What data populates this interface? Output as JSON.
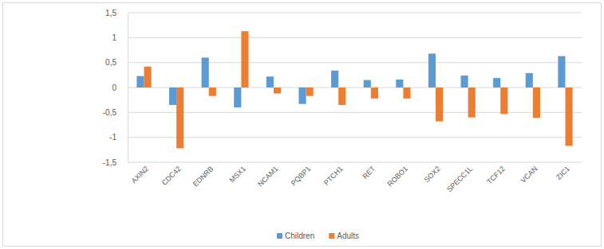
{
  "chart_data": {
    "type": "bar",
    "categories": [
      "AXIN2",
      "CDC42",
      "EDNRB",
      "MSX1",
      "NCAM1",
      "PQBP1",
      "PTCH1",
      "RET",
      "ROBO1",
      "SOX2",
      "SPECC1L",
      "TCF12",
      "VCAN",
      "ZIC1"
    ],
    "series": [
      {
        "name": "Children",
        "color": "#5b9bd5",
        "values": [
          0.23,
          -0.35,
          0.6,
          -0.4,
          0.22,
          -0.33,
          0.34,
          0.15,
          0.16,
          0.68,
          0.24,
          0.19,
          0.29,
          0.63
        ]
      },
      {
        "name": "Adults",
        "color": "#ed7d31",
        "values": [
          0.42,
          -1.22,
          -0.17,
          1.13,
          -0.12,
          -0.17,
          -0.35,
          -0.22,
          -0.22,
          -0.68,
          -0.6,
          -0.53,
          -0.61,
          -1.17
        ]
      }
    ],
    "ylim": [
      -1.5,
      1.5
    ],
    "yticks": [
      {
        "value": -1.5,
        "label": "-1,5"
      },
      -1,
      {
        "value": -0.5,
        "label": "-0,5"
      },
      0,
      {
        "value": 0.5,
        "label": "0,5"
      },
      1,
      {
        "value": 1.5,
        "label": "1,5"
      }
    ],
    "grid": true,
    "legend": "bottom"
  }
}
